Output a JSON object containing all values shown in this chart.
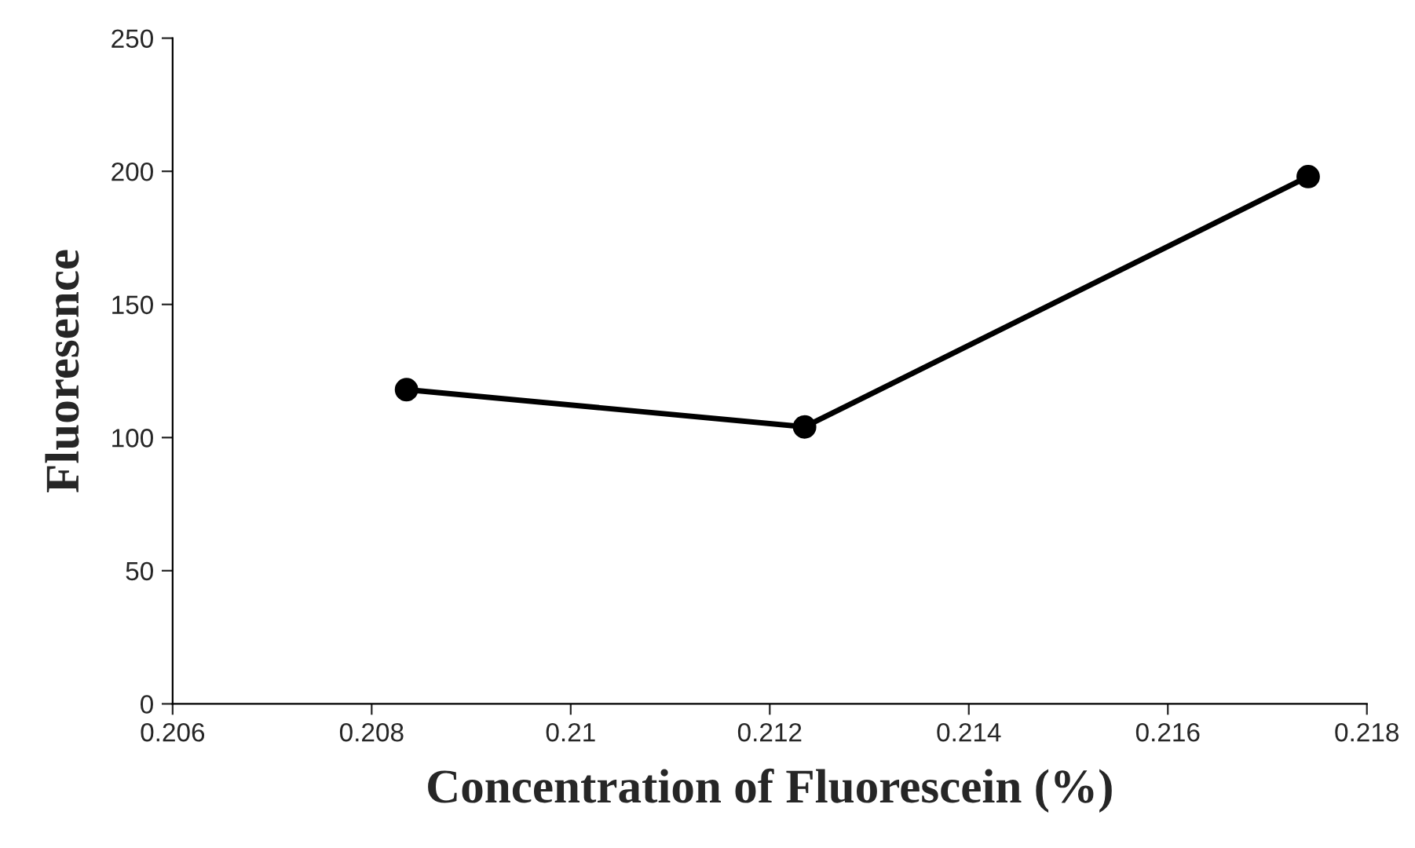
{
  "chart_data": {
    "type": "line",
    "xlabel": "Concentration of Fluorescein (%)",
    "ylabel": "Fluoresence",
    "x": [
      0.20835,
      0.21235,
      0.21741
    ],
    "series": [
      {
        "color": "#000000",
        "values": [
          118,
          104,
          198
        ]
      }
    ],
    "xlim": [
      0.206,
      0.218
    ],
    "xticks": [
      0.206,
      0.208,
      0.21,
      0.212,
      0.214,
      0.216,
      0.218
    ],
    "ylim": [
      0,
      250
    ],
    "yticks": [
      0,
      50,
      100,
      150,
      200,
      250
    ],
    "marker": "circle",
    "line_style": "solid",
    "grid": false,
    "legend": false
  }
}
